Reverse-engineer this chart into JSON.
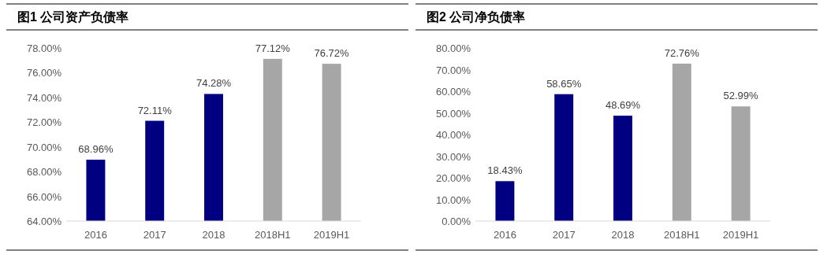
{
  "chart_data": [
    {
      "type": "bar",
      "title": "图1 公司资产负债率",
      "categories": [
        "2016",
        "2017",
        "2018",
        "2018H1",
        "2019H1"
      ],
      "values": [
        68.96,
        72.11,
        74.28,
        77.12,
        76.72
      ],
      "colors": [
        "#000080",
        "#000080",
        "#000080",
        "#a6a6a6",
        "#a6a6a6"
      ],
      "data_labels": true,
      "value_labels": [
        "68.96%",
        "72.11%",
        "74.28%",
        "77.12%",
        "76.72%"
      ],
      "ylim": [
        64,
        78
      ],
      "yticks": [
        {
          "value": 64,
          "label": "64.00%"
        },
        {
          "value": 66,
          "label": "66.00%"
        },
        {
          "value": 68,
          "label": "68.00%"
        },
        {
          "value": 70,
          "label": "70.00%"
        },
        {
          "value": 72,
          "label": "72.00%"
        },
        {
          "value": 74,
          "label": "74.00%"
        },
        {
          "value": 76,
          "label": "76.00%"
        },
        {
          "value": 78,
          "label": "78.00%"
        }
      ]
    },
    {
      "type": "bar",
      "title": "图2 公司净负债率",
      "categories": [
        "2016",
        "2017",
        "2018",
        "2018H1",
        "2019H1"
      ],
      "values": [
        18.43,
        58.65,
        48.69,
        72.76,
        52.99
      ],
      "colors": [
        "#000080",
        "#000080",
        "#000080",
        "#a6a6a6",
        "#a6a6a6"
      ],
      "data_labels": true,
      "value_labels": [
        "18.43%",
        "58.65%",
        "48.69%",
        "72.76%",
        "52.99%"
      ],
      "ylim": [
        0,
        80
      ],
      "yticks": [
        {
          "value": 0,
          "label": "0.00%"
        },
        {
          "value": 10,
          "label": "10.00%"
        },
        {
          "value": 20,
          "label": "20.00%"
        },
        {
          "value": 30,
          "label": "30.00%"
        },
        {
          "value": 40,
          "label": "40.00%"
        },
        {
          "value": 50,
          "label": "50.00%"
        },
        {
          "value": 60,
          "label": "60.00%"
        },
        {
          "value": 70,
          "label": "70.00%"
        },
        {
          "value": 80,
          "label": "80.00%"
        }
      ]
    }
  ]
}
